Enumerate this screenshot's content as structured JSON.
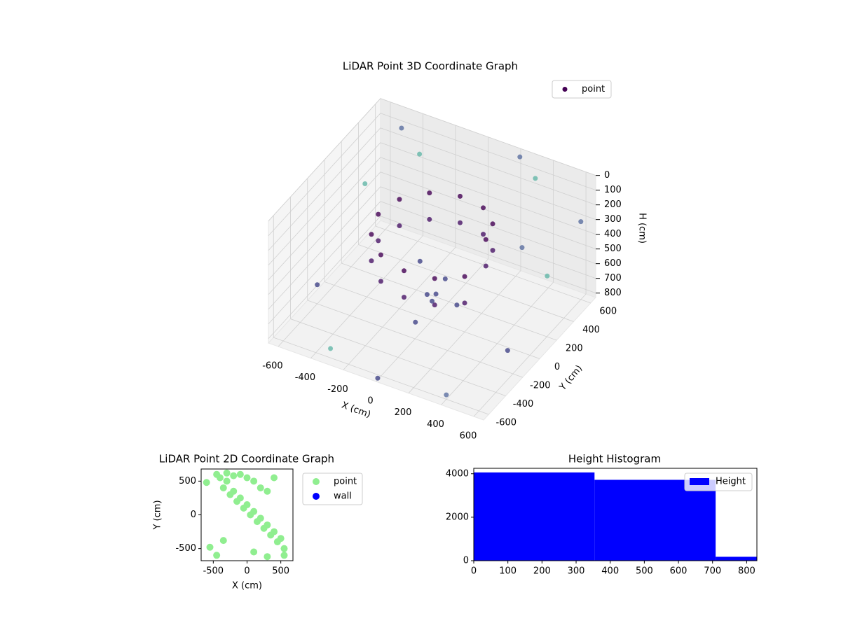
{
  "chart_data": [
    {
      "type": "scatter3d",
      "title": "LiDAR Point 3D Coordinate Graph",
      "x_label": "X (cm)",
      "y_label": "Y (cm)",
      "z_label": "H (cm)",
      "xlim": [
        -660,
        660
      ],
      "ylim": [
        -660,
        660
      ],
      "zlim": [
        0,
        830
      ],
      "z_inverted": true,
      "xticks": [
        -600,
        -400,
        -200,
        0,
        200,
        400,
        600
      ],
      "yticks": [
        -600,
        -400,
        -200,
        0,
        200,
        400,
        600
      ],
      "zticks": [
        0,
        100,
        200,
        300,
        400,
        500,
        600,
        700,
        800
      ],
      "legend": "upper right",
      "grid": true,
      "series": [
        {
          "name": "point",
          "color": "#440154",
          "x": [
            330,
            286,
            165,
            0,
            -165,
            -286,
            -330,
            -286,
            -165,
            0,
            165,
            286,
            330,
            286,
            165,
            0,
            -165,
            -286,
            -330,
            -286,
            -165,
            0,
            165,
            286,
            -100,
            50,
            0,
            100,
            -50,
            -20,
            60,
            -500,
            -400,
            600,
            550,
            -600,
            400,
            -300,
            200,
            620,
            -620,
            500,
            0,
            300
          ],
          "y": [
            0,
            165,
            286,
            330,
            286,
            165,
            0,
            -165,
            -286,
            -330,
            -286,
            -165,
            0,
            165,
            286,
            330,
            286,
            165,
            0,
            -165,
            -286,
            -330,
            -286,
            -165,
            50,
            -50,
            0,
            100,
            -100,
            -20,
            40,
            600,
            620,
            600,
            300,
            -200,
            -600,
            -620,
            650,
            -300,
            400,
            100,
            -640,
            640
          ],
          "z": [
            150,
            165,
            180,
            195,
            210,
            225,
            240,
            255,
            270,
            285,
            300,
            315,
            330,
            345,
            360,
            375,
            390,
            405,
            420,
            435,
            450,
            465,
            480,
            495,
            500,
            600,
            700,
            750,
            800,
            650,
            550,
            100,
            250,
            300,
            500,
            700,
            800,
            750,
            50,
            600,
            400,
            200,
            820,
            150
          ],
          "colors": [
            "#440154",
            "#440154",
            "#440154",
            "#440154",
            "#440154",
            "#440154",
            "#440154",
            "#440154",
            "#440154",
            "#440154",
            "#440154",
            "#440154",
            "#481467",
            "#481467",
            "#481467",
            "#481467",
            "#481467",
            "#481467",
            "#481467",
            "#481467",
            "#481467",
            "#481467",
            "#481467",
            "#481467",
            "#414487",
            "#414487",
            "#414487",
            "#414487",
            "#414487",
            "#414487",
            "#414487",
            "#5b6fa0",
            "#63b6a8",
            "#5b6fa0",
            "#63b6a8",
            "#414487",
            "#5b6fa0",
            "#63b6a8",
            "#5b6fa0",
            "#414487",
            "#63b6a8",
            "#5b6fa0",
            "#414487",
            "#63b6a8"
          ]
        }
      ]
    },
    {
      "type": "scatter",
      "title": "LiDAR Point 2D Coordinate Graph",
      "x_label": "X (cm)",
      "y_label": "Y (cm)",
      "xlim": [
        -680,
        680
      ],
      "ylim": [
        -680,
        680
      ],
      "xticks": [
        -500,
        0,
        500
      ],
      "yticks": [
        -500,
        0,
        500
      ],
      "legend": "outside right",
      "series": [
        {
          "name": "point",
          "color": "#90ee90",
          "x": [
            -600,
            -450,
            -400,
            -350,
            -300,
            -250,
            -200,
            -150,
            -100,
            -50,
            0,
            50,
            100,
            150,
            200,
            250,
            300,
            350,
            400,
            450,
            500,
            550,
            -300,
            -200,
            -100,
            0,
            100,
            200,
            300,
            -550,
            -450,
            400,
            550,
            -350,
            100,
            300
          ],
          "y": [
            480,
            600,
            550,
            400,
            500,
            300,
            350,
            200,
            250,
            100,
            150,
            0,
            50,
            -100,
            -50,
            -200,
            -150,
            -300,
            -250,
            -400,
            -350,
            -500,
            620,
            580,
            600,
            550,
            500,
            400,
            350,
            -480,
            -600,
            550,
            -600,
            -380,
            -550,
            -620
          ]
        },
        {
          "name": "wall",
          "color": "#0000ff",
          "x": [],
          "y": []
        }
      ]
    },
    {
      "type": "histogram",
      "title": "Height Histogram",
      "xlim": [
        0,
        830
      ],
      "ylim": [
        0,
        4250
      ],
      "xticks": [
        0,
        100,
        200,
        300,
        400,
        500,
        600,
        700,
        800
      ],
      "yticks": [
        0,
        2000,
        4000
      ],
      "legend": "upper right",
      "series": [
        {
          "name": "Height",
          "color": "#0000ff",
          "bins": [
            0,
            354,
            709,
            830
          ],
          "values": [
            4060,
            3720,
            180
          ]
        }
      ]
    }
  ]
}
